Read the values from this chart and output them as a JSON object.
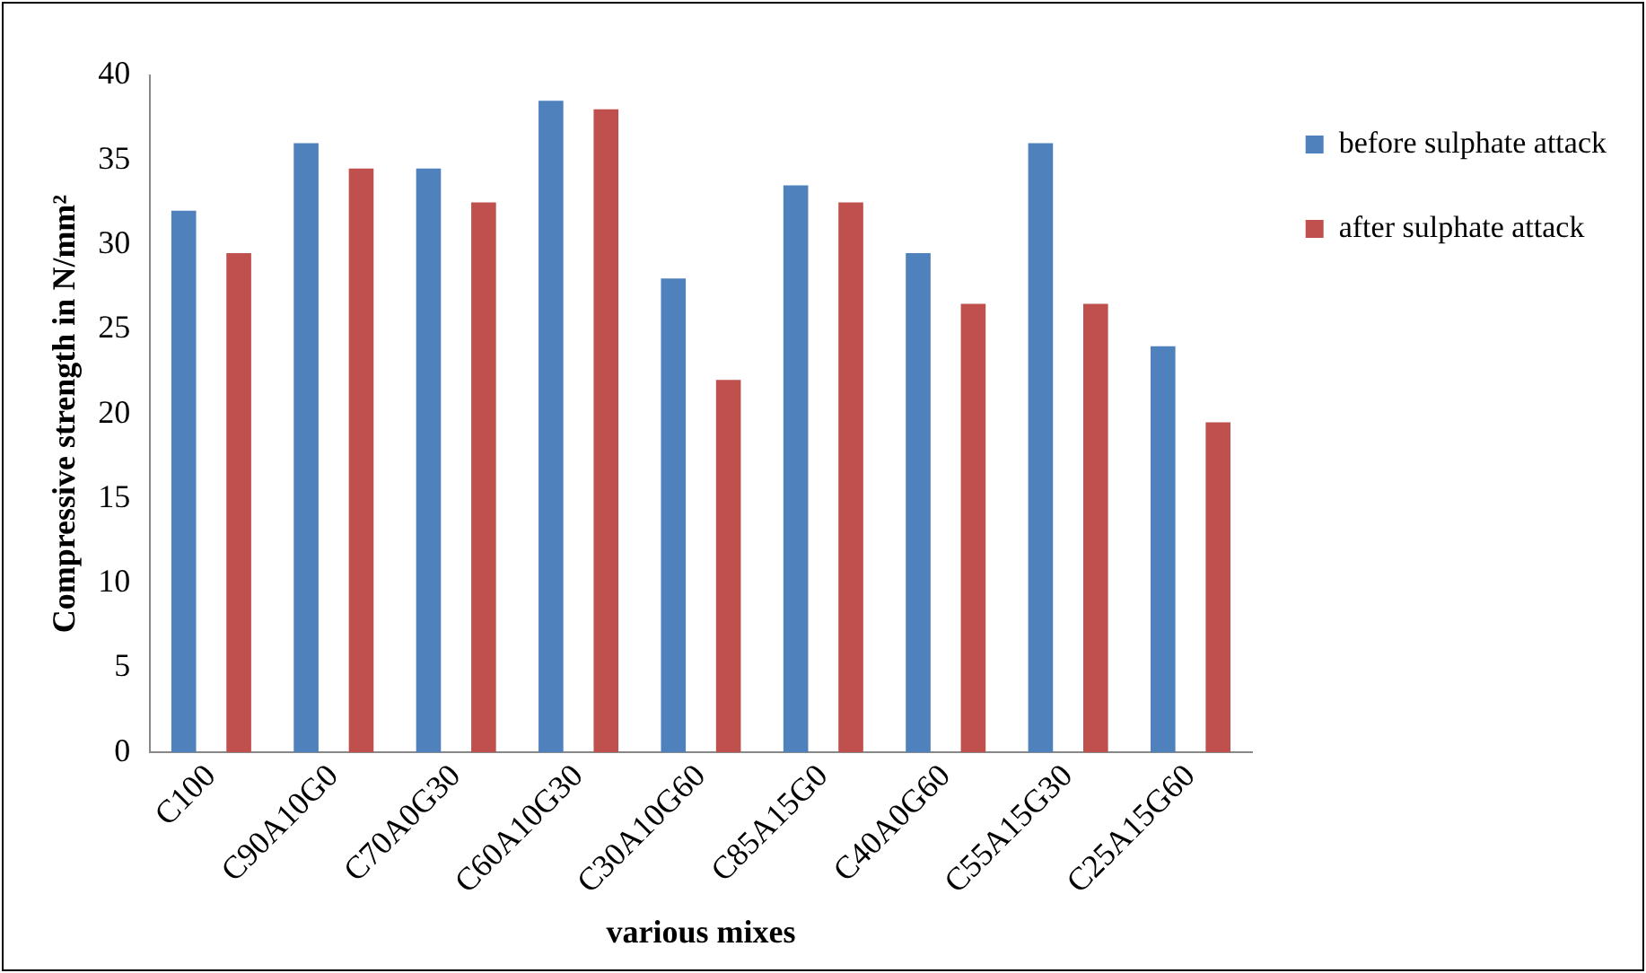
{
  "chart_data": {
    "type": "bar",
    "xlabel": "various mixes",
    "ylabel": "Compressive strength in N/mm²",
    "categories": [
      "C100",
      "C90A10G0",
      "C70A0G30",
      "C60A10G30",
      "C30A10G60",
      "C85A15G0",
      "C40A0G60",
      "C55A15G30",
      "C25A15G60"
    ],
    "series": [
      {
        "name": "before sulphate attack",
        "color": "#4f81bd",
        "values": [
          32,
          36,
          34.5,
          38.5,
          28,
          33.5,
          29.5,
          36,
          24
        ]
      },
      {
        "name": "after sulphate attack",
        "color": "#c0504d",
        "values": [
          29.5,
          34.5,
          32.5,
          38,
          22,
          32.5,
          26.5,
          26.5,
          19.5
        ]
      }
    ],
    "ylim": [
      0,
      40
    ],
    "yticks": [
      0,
      5,
      10,
      15,
      20,
      25,
      30,
      35,
      40
    ],
    "grid": false,
    "legend": "right"
  }
}
